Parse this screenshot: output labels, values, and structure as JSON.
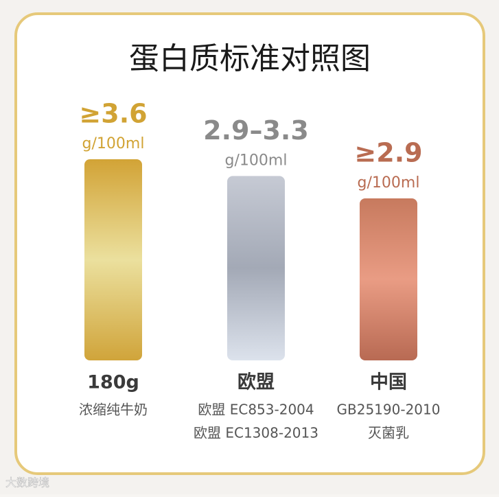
{
  "chart_data": {
    "type": "bar",
    "title": "蛋白质标准对照图",
    "categories": [
      "180g",
      "欧盟",
      "中国"
    ],
    "notes": [
      [
        "浓缩纯牛奶"
      ],
      [
        "欧盟 EC853-2004",
        "欧盟 EC1308-2013"
      ],
      [
        "GB25190-2010",
        "灭菌乳"
      ]
    ],
    "values": [
      3.6,
      3.3,
      2.9
    ],
    "value_labels": [
      "≥3.6",
      "2.9–3.3",
      "≥2.9"
    ],
    "unit": "g/100ml",
    "colors": [
      [
        "#d2a336",
        "#ebe09e",
        "#d0a43a"
      ],
      [
        "#c6cad4",
        "#a3a9b6",
        "#dce2ec"
      ],
      [
        "#c77a5e",
        "#e99c84",
        "#b86a53"
      ]
    ],
    "label_colors": [
      "#d1a334",
      "#8a8a8a",
      "#b96c52"
    ],
    "watermark": "大数跨境"
  }
}
